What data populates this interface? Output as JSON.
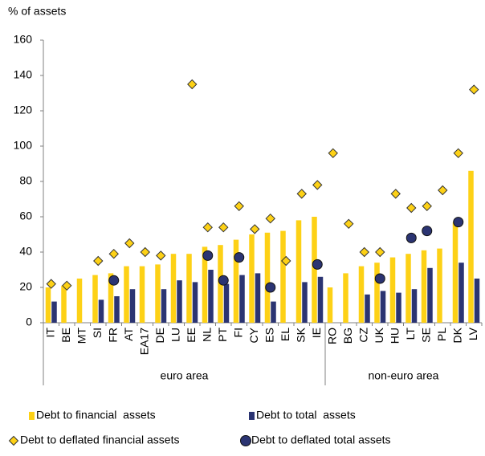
{
  "chart_data": {
    "type": "bar",
    "y_axis_label": "% of assets",
    "categories": [
      "IT",
      "BE",
      "MT",
      "SI",
      "FR",
      "AT",
      "EA17",
      "DE",
      "LU",
      "EE",
      "NL",
      "PT",
      "FI",
      "CY",
      "ES",
      "EL",
      "SK",
      "IE",
      "RO",
      "BG",
      "CZ",
      "UK",
      "HU",
      "LT",
      "SE",
      "PL",
      "DK",
      "LV"
    ],
    "groups": [
      {
        "label": "euro area",
        "count": 18
      },
      {
        "label": "non-euro area",
        "count": 10
      }
    ],
    "series": [
      {
        "name": "Debt to financial  assets",
        "kind": "bar",
        "color": "#FDD116",
        "values": [
          20,
          21,
          25,
          27,
          28,
          32,
          32,
          33,
          39,
          39,
          43,
          44,
          47,
          50,
          51,
          52,
          58,
          60,
          20,
          28,
          32,
          34,
          37,
          39,
          41,
          42,
          57,
          86
        ]
      },
      {
        "name": "Debt to total  assets",
        "kind": "bar",
        "color": "#2B3472",
        "values": [
          12,
          null,
          null,
          13,
          15,
          19,
          null,
          19,
          24,
          23,
          30,
          22,
          27,
          28,
          12,
          null,
          23,
          26,
          null,
          null,
          16,
          18,
          17,
          19,
          31,
          null,
          34,
          25
        ]
      },
      {
        "name": "Debt to deflated financial assets",
        "kind": "diamond",
        "color": "#FDD116",
        "values": [
          22,
          21,
          null,
          35,
          39,
          45,
          40,
          38,
          null,
          135,
          54,
          54,
          66,
          53,
          59,
          35,
          73,
          78,
          96,
          56,
          40,
          40,
          73,
          65,
          66,
          75,
          96,
          132
        ]
      },
      {
        "name": "Debt to deflated total assets",
        "kind": "circle",
        "color": "#2B3472",
        "values": [
          null,
          null,
          null,
          null,
          24,
          null,
          null,
          null,
          null,
          null,
          38,
          24,
          37,
          null,
          20,
          null,
          null,
          33,
          null,
          null,
          null,
          25,
          null,
          48,
          52,
          null,
          57,
          null
        ]
      }
    ],
    "ylim": [
      0,
      160
    ],
    "yticks": [
      0,
      20,
      40,
      60,
      80,
      100,
      120,
      140,
      160
    ]
  }
}
